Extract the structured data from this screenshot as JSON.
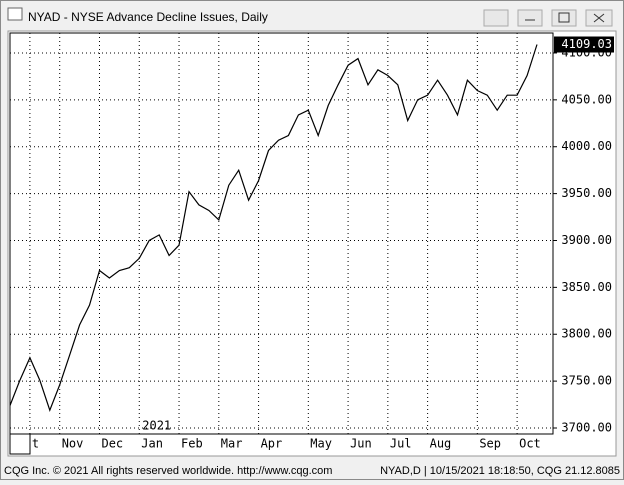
{
  "window": {
    "title": "NYAD - NYSE Advance Decline Issues, Daily"
  },
  "footer": {
    "left": "CQG Inc. © 2021 All rights reserved worldwide. http://www.cqg.com",
    "right": "NYAD,D | 10/15/2021 18:18:50, CQG 21.12.8085"
  },
  "chart_data": {
    "type": "line",
    "color": "#000000",
    "categories": [
      null,
      null,
      "t",
      null,
      null,
      "Nov",
      null,
      null,
      null,
      "Dec",
      null,
      null,
      null,
      "Jan",
      null,
      null,
      null,
      "Feb",
      null,
      null,
      null,
      "Mar",
      null,
      null,
      null,
      "Apr",
      null,
      null,
      null,
      null,
      "May",
      null,
      null,
      null,
      "Jun",
      null,
      null,
      null,
      "Jul",
      null,
      null,
      null,
      "Aug",
      null,
      null,
      null,
      null,
      "Sep",
      null,
      null,
      null,
      "Oct",
      null,
      null
    ],
    "values": [
      3724,
      3751,
      3775,
      3751,
      3719,
      3746,
      3778,
      3810,
      3831,
      3868,
      3860,
      3868,
      3871,
      3881,
      3900,
      3906,
      3884,
      3895,
      3952,
      3938,
      3932,
      3922,
      3959,
      3975,
      3943,
      3964,
      3996,
      4007,
      4012,
      4034,
      4039,
      4012,
      4044,
      4066,
      4087,
      4094,
      4066,
      4082,
      4076,
      4066,
      4028,
      4050,
      4055,
      4071,
      4055,
      4034,
      4071,
      4060,
      4055,
      4039,
      4055,
      4055,
      4076,
      4109.03
    ],
    "last_value": 4109.03,
    "year_label": "2021",
    "ylim": [
      3693.6,
      4121.3
    ],
    "yticks": [
      {
        "value": 3700,
        "label": "3700.00"
      },
      {
        "value": 3750,
        "label": "3750.00"
      },
      {
        "value": 3800,
        "label": "3800.00"
      },
      {
        "value": 3850,
        "label": "3850.00"
      },
      {
        "value": 3900,
        "label": "3900.00"
      },
      {
        "value": 3950,
        "label": "3950.00"
      },
      {
        "value": 4000,
        "label": "4000.00"
      },
      {
        "value": 4050,
        "label": "4050.00"
      },
      {
        "value": 4100,
        "label": "4100.00"
      }
    ],
    "grid": true
  }
}
